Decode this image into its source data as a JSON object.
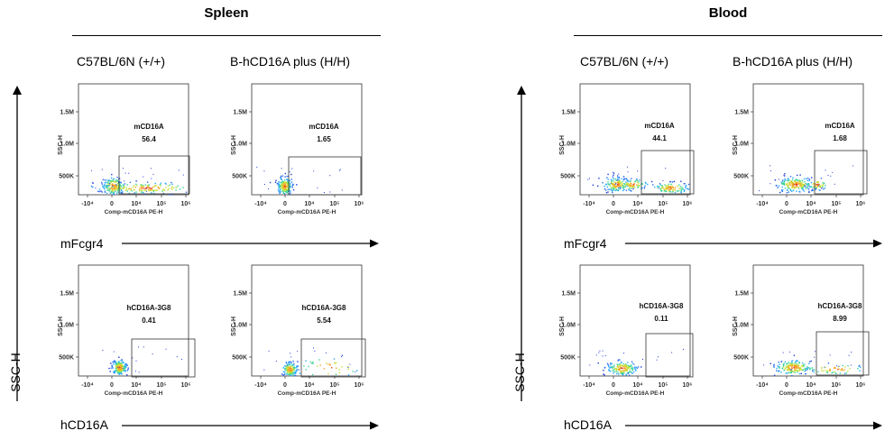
{
  "panels": [
    {
      "title": "Spleen",
      "columns": [
        "C57BL/6N (+/+)",
        "B-hCD16A plus  (H/H)"
      ],
      "rows": [
        {
          "marker_label": "mFcgr4"
        },
        {
          "marker_label": "hCD16A"
        }
      ],
      "y_axis_label": "SSC-H"
    },
    {
      "title": "Blood",
      "columns": [
        "C57BL/6N (+/+)",
        "B-hCD16A plus  (H/H)"
      ],
      "rows": [
        {
          "marker_label": "mFcgr4"
        },
        {
          "marker_label": "hCD16A"
        }
      ],
      "y_axis_label": "SSC-H"
    }
  ],
  "plot_axis": {
    "y_ticks": [
      "1.5M",
      "1.0M",
      "500K"
    ],
    "y_title": "SSC-H",
    "x_title": "Comp-mCD16A PE-H",
    "x_ticks": [
      "-10⁴",
      "0",
      "10⁴",
      "10⁵",
      "10⁶"
    ]
  },
  "chart_data": [
    {
      "type": "scatter",
      "tissue": "Spleen",
      "genotype": "C57BL/6N (+/+)",
      "gate": "mCD16A",
      "gate_percent": "56.4"
    },
    {
      "type": "scatter",
      "tissue": "Spleen",
      "genotype": "B-hCD16A plus  (H/H)",
      "gate": "mCD16A",
      "gate_percent": "1.65"
    },
    {
      "type": "scatter",
      "tissue": "Spleen",
      "genotype": "C57BL/6N (+/+)",
      "gate": "hCD16A-3G8",
      "gate_percent": "0.41"
    },
    {
      "type": "scatter",
      "tissue": "Spleen",
      "genotype": "B-hCD16A plus  (H/H)",
      "gate": "hCD16A-3G8",
      "gate_percent": "5.54"
    },
    {
      "type": "scatter",
      "tissue": "Blood",
      "genotype": "C57BL/6N (+/+)",
      "gate": "mCD16A",
      "gate_percent": "44.1"
    },
    {
      "type": "scatter",
      "tissue": "Blood",
      "genotype": "B-hCD16A plus  (H/H)",
      "gate": "mCD16A",
      "gate_percent": "1.68"
    },
    {
      "type": "scatter",
      "tissue": "Blood",
      "genotype": "C57BL/6N (+/+)",
      "gate": "hCD16A-3G8",
      "gate_percent": "0.11"
    },
    {
      "type": "scatter",
      "tissue": "Blood",
      "genotype": "B-hCD16A plus  (H/H)",
      "gate": "hCD16A-3G8",
      "gate_percent": "8.99"
    }
  ]
}
